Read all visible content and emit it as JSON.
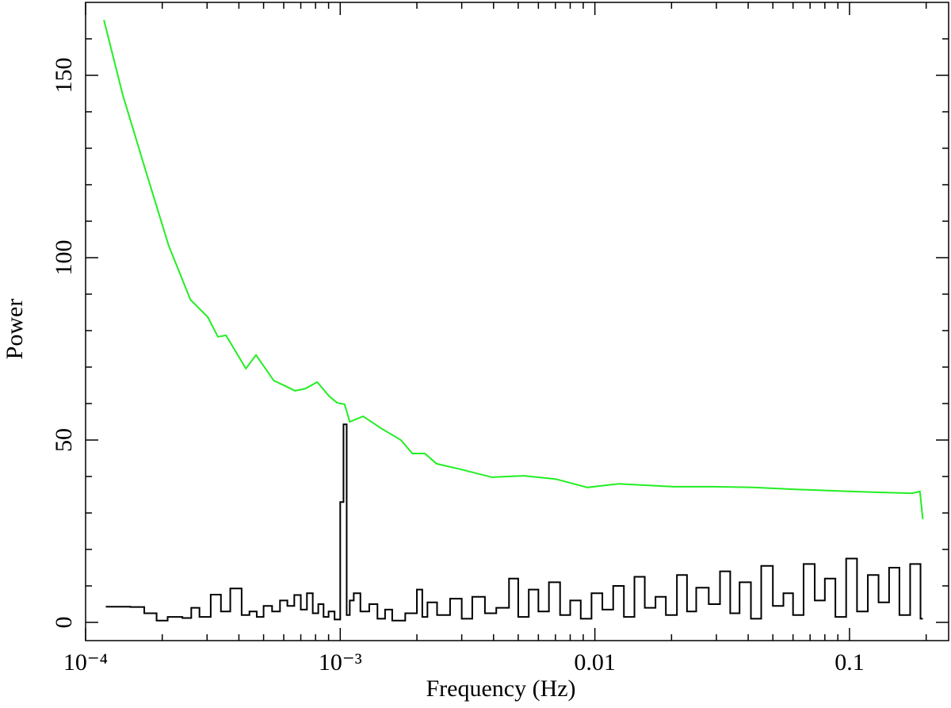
{
  "chart_data": {
    "type": "line",
    "x_label": "Frequency (Hz)",
    "y_label": "Power",
    "xscale": "log",
    "xlim": [
      0.0001,
      0.245
    ],
    "ylim": [
      -5,
      170
    ],
    "xticks": [
      {
        "value": 0.0001,
        "label": "10⁻⁴"
      },
      {
        "value": 0.001,
        "label": "10⁻³"
      },
      0.01,
      0.1
    ],
    "xminorticks": [
      0.0002,
      0.0003,
      0.0004,
      0.0005,
      0.0006,
      0.0007,
      0.0008,
      0.0009,
      0.002,
      0.003,
      0.004,
      0.005,
      0.006,
      0.007,
      0.008,
      0.009,
      0.02,
      0.03,
      0.04,
      0.05,
      0.06,
      0.07,
      0.08,
      0.09,
      0.2
    ],
    "yticks": [
      0,
      50,
      100,
      150
    ],
    "yminorticks": [
      10,
      20,
      30,
      40,
      60,
      70,
      80,
      90,
      110,
      120,
      130,
      140,
      160
    ],
    "series": [
      {
        "color": "#000000",
        "step": true,
        "x": [
          0.00012,
          0.00015,
          0.00017,
          0.00019,
          0.00021,
          0.00024,
          0.00026,
          0.00028,
          0.00031,
          0.00034,
          0.00037,
          0.00041,
          0.00044,
          0.00047,
          0.0005,
          0.00054,
          0.00058,
          0.00062,
          0.00066,
          0.0007,
          0.00074,
          0.00078,
          0.00082,
          0.00086,
          0.0009,
          0.00095,
          0.001,
          0.00103,
          0.00106,
          0.00109,
          0.00113,
          0.0012,
          0.0013,
          0.0014,
          0.0015,
          0.0016,
          0.0018,
          0.002,
          0.0021,
          0.0022,
          0.0024,
          0.0027,
          0.003,
          0.0033,
          0.0037,
          0.0041,
          0.0046,
          0.005,
          0.0055,
          0.006,
          0.0066,
          0.0073,
          0.008,
          0.0088,
          0.0097,
          0.0107,
          0.0118,
          0.013,
          0.0143,
          0.0157,
          0.0173,
          0.019,
          0.021,
          0.023,
          0.025,
          0.028,
          0.031,
          0.034,
          0.037,
          0.041,
          0.045,
          0.05,
          0.055,
          0.06,
          0.066,
          0.073,
          0.08,
          0.088,
          0.097,
          0.107,
          0.118,
          0.13,
          0.143,
          0.157,
          0.173,
          0.19
        ],
        "values": [
          4.3,
          4.2,
          2.5,
          0.5,
          1.5,
          1.2,
          4.0,
          1.5,
          7.6,
          3.0,
          9.3,
          2.0,
          3.0,
          1.5,
          4.5,
          3.0,
          6.0,
          4.5,
          7.5,
          3.5,
          8.0,
          2.5,
          5.0,
          1.5,
          3.0,
          0.8,
          33,
          54.3,
          2.0,
          6.0,
          8.0,
          3.0,
          5.0,
          1.0,
          3.5,
          0.5,
          2.5,
          9.0,
          1.5,
          5.5,
          2.0,
          6.5,
          1.0,
          7.0,
          2.5,
          4.0,
          12.0,
          1.5,
          9.0,
          3.0,
          11.0,
          2.0,
          6.0,
          1.0,
          8.0,
          3.5,
          10.0,
          1.5,
          12.5,
          4.0,
          7.0,
          2.0,
          13.0,
          3.0,
          9.5,
          5.0,
          14.0,
          2.5,
          11.0,
          1.0,
          15.5,
          4.5,
          8.0,
          2.0,
          16.0,
          6.0,
          12.0,
          1.5,
          17.5,
          3.0,
          13.0,
          5.5,
          15.0,
          2.0,
          16.0,
          1.0
        ]
      },
      {
        "color": "#22ee22",
        "step": false,
        "x": [
          0.000118,
          0.00014,
          0.000174,
          0.000212,
          0.000258,
          0.000302,
          0.000331,
          0.000356,
          0.000426,
          0.000467,
          0.000548,
          0.000609,
          0.000664,
          0.00073,
          0.000812,
          0.000905,
          0.000973,
          0.00104,
          0.00109,
          0.00123,
          0.00144,
          0.00173,
          0.00192,
          0.00215,
          0.00239,
          0.00296,
          0.00394,
          0.00526,
          0.00701,
          0.00935,
          0.0124,
          0.0204,
          0.0293,
          0.0419,
          0.06,
          0.0858,
          0.123,
          0.176,
          0.189,
          0.194
        ],
        "values": [
          165.2,
          144.6,
          122.8,
          103.3,
          88.5,
          83.7,
          78.3,
          78.7,
          69.6,
          73.3,
          66.3,
          64.8,
          63.5,
          64.1,
          65.9,
          62.0,
          60.2,
          59.8,
          55.0,
          56.5,
          53.3,
          50.0,
          46.3,
          46.3,
          43.5,
          42.0,
          39.8,
          40.2,
          39.3,
          37.0,
          38.0,
          37.2,
          37.2,
          37.0,
          36.5,
          36.1,
          35.7,
          35.4,
          35.9,
          28.3
        ]
      }
    ]
  }
}
